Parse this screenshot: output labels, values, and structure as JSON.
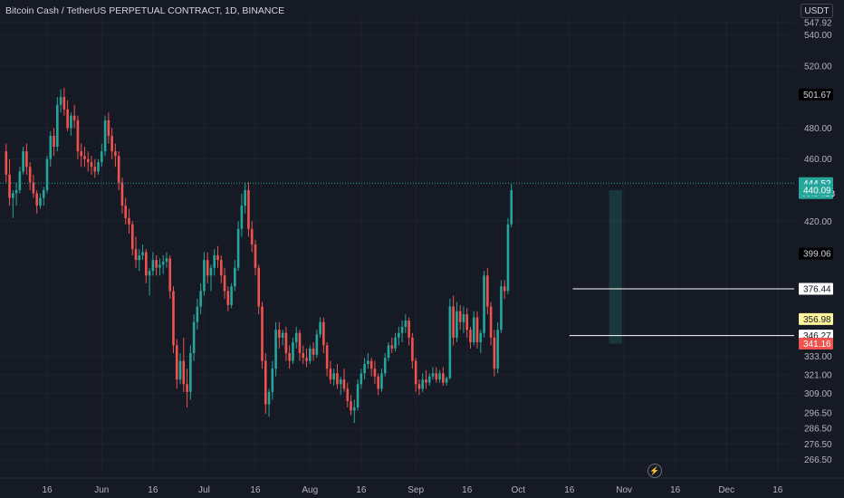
{
  "header": {
    "title": "Bitcoin Cash / TetherUS PERPETUAL CONTRACT, 1D, BINANCE",
    "currency": "USDT"
  },
  "colors": {
    "background": "#161a25",
    "grid": "#1f2330",
    "up": "#26a69a",
    "down": "#ef5350",
    "axis_text": "#b2b5be",
    "level_line": "#ffffff"
  },
  "icons": {
    "replay": "lightning-icon"
  },
  "chart_data": {
    "type": "candlestick",
    "title": "Bitcoin Cash / TetherUS PERPETUAL CONTRACT, 1D, BINANCE",
    "ylim": [
      258,
      552
    ],
    "y_ticks": [
      "266.50",
      "276.50",
      "286.50",
      "296.50",
      "309.00",
      "321.00",
      "333.00",
      "420.00",
      "460.00",
      "480.00",
      "520.00",
      "540.00",
      "547.92"
    ],
    "x_ticks": [
      {
        "label": "16",
        "day": 0
      },
      {
        "label": "Jun",
        "day": 16
      },
      {
        "label": "16",
        "day": 31
      },
      {
        "label": "Jul",
        "day": 46
      },
      {
        "label": "16",
        "day": 61
      },
      {
        "label": "Aug",
        "day": 77
      },
      {
        "label": "16",
        "day": 92
      },
      {
        "label": "Sep",
        "day": 108
      },
      {
        "label": "16",
        "day": 123
      },
      {
        "label": "Oct",
        "day": 138
      },
      {
        "label": "16",
        "day": 153
      },
      {
        "label": "Nov",
        "day": 169
      },
      {
        "label": "16",
        "day": 184
      },
      {
        "label": "Dec",
        "day": 199
      },
      {
        "label": "16",
        "day": 214
      }
    ],
    "price_labels": [
      {
        "value": 501.67,
        "text": "501.67",
        "style": "dark"
      },
      {
        "value": 444.52,
        "text": "444.52",
        "style": "green",
        "sub": "09:54:28"
      },
      {
        "value": 440.09,
        "text": "440.09",
        "style": "green"
      },
      {
        "value": 399.06,
        "text": "399.06",
        "style": "dark"
      },
      {
        "value": 376.44,
        "text": "376.44",
        "style": "white"
      },
      {
        "value": 356.98,
        "text": "356.98",
        "style": "yellow"
      },
      {
        "value": 346.27,
        "text": "346.27",
        "style": "white"
      },
      {
        "value": 341.16,
        "text": "341.16",
        "style": "red"
      }
    ],
    "levels": [
      {
        "value": 376.44,
        "from_day": 154
      },
      {
        "value": 346.27,
        "from_day": 153
      }
    ],
    "current_price": 444.52,
    "highlight": {
      "from_day": 165,
      "to_day": 168,
      "low": 341,
      "high": 440
    },
    "first_day": -12,
    "candles": [
      [
        465,
        470,
        445,
        450
      ],
      [
        450,
        460,
        430,
        435
      ],
      [
        435,
        440,
        422,
        438
      ],
      [
        438,
        445,
        430,
        440
      ],
      [
        440,
        455,
        438,
        452
      ],
      [
        452,
        468,
        450,
        465
      ],
      [
        465,
        470,
        450,
        455
      ],
      [
        455,
        458,
        440,
        445
      ],
      [
        445,
        450,
        435,
        438
      ],
      [
        438,
        440,
        425,
        430
      ],
      [
        430,
        438,
        428,
        435
      ],
      [
        435,
        442,
        430,
        440
      ],
      [
        440,
        462,
        438,
        460
      ],
      [
        460,
        478,
        455,
        475
      ],
      [
        475,
        480,
        462,
        468
      ],
      [
        468,
        500,
        465,
        495
      ],
      [
        495,
        505,
        490,
        500
      ],
      [
        500,
        506,
        488,
        492
      ],
      [
        492,
        498,
        478,
        480
      ],
      [
        480,
        490,
        475,
        488
      ],
      [
        488,
        495,
        480,
        485
      ],
      [
        485,
        488,
        460,
        465
      ],
      [
        465,
        470,
        455,
        462
      ],
      [
        462,
        468,
        455,
        460
      ],
      [
        460,
        465,
        452,
        458
      ],
      [
        458,
        462,
        450,
        455
      ],
      [
        455,
        460,
        448,
        452
      ],
      [
        452,
        460,
        450,
        458
      ],
      [
        458,
        470,
        455,
        465
      ],
      [
        465,
        488,
        462,
        485
      ],
      [
        485,
        490,
        470,
        475
      ],
      [
        475,
        480,
        460,
        465
      ],
      [
        465,
        470,
        455,
        462
      ],
      [
        462,
        465,
        440,
        445
      ],
      [
        445,
        448,
        425,
        430
      ],
      [
        430,
        435,
        418,
        422
      ],
      [
        422,
        428,
        412,
        418
      ],
      [
        418,
        420,
        398,
        402
      ],
      [
        402,
        410,
        390,
        395
      ],
      [
        395,
        402,
        388,
        398
      ],
      [
        398,
        405,
        395,
        400
      ],
      [
        400,
        402,
        380,
        385
      ],
      [
        385,
        390,
        372,
        388
      ],
      [
        388,
        400,
        385,
        395
      ],
      [
        395,
        398,
        385,
        390
      ],
      [
        390,
        396,
        385,
        392
      ],
      [
        392,
        398,
        386,
        394
      ],
      [
        394,
        400,
        390,
        396
      ],
      [
        396,
        398,
        370,
        375
      ],
      [
        375,
        378,
        335,
        340
      ],
      [
        340,
        344,
        312,
        318
      ],
      [
        318,
        335,
        315,
        330
      ],
      [
        330,
        345,
        310,
        315
      ],
      [
        315,
        325,
        300,
        310
      ],
      [
        310,
        340,
        305,
        335
      ],
      [
        335,
        360,
        330,
        355
      ],
      [
        355,
        370,
        350,
        365
      ],
      [
        365,
        380,
        360,
        375
      ],
      [
        375,
        400,
        372,
        395
      ],
      [
        395,
        400,
        380,
        385
      ],
      [
        385,
        392,
        375,
        390
      ],
      [
        390,
        402,
        385,
        398
      ],
      [
        398,
        404,
        390,
        395
      ],
      [
        395,
        398,
        380,
        385
      ],
      [
        385,
        390,
        370,
        375
      ],
      [
        375,
        378,
        362,
        366
      ],
      [
        366,
        380,
        364,
        378
      ],
      [
        378,
        395,
        375,
        390
      ],
      [
        390,
        420,
        388,
        415
      ],
      [
        415,
        438,
        410,
        430
      ],
      [
        430,
        445,
        425,
        440
      ],
      [
        440,
        445,
        410,
        415
      ],
      [
        415,
        420,
        400,
        405
      ],
      [
        405,
        408,
        385,
        390
      ],
      [
        390,
        392,
        360,
        365
      ],
      [
        365,
        368,
        325,
        330
      ],
      [
        330,
        335,
        296,
        302
      ],
      [
        302,
        312,
        294,
        310
      ],
      [
        310,
        330,
        305,
        325
      ],
      [
        325,
        355,
        320,
        350
      ],
      [
        350,
        355,
        338,
        345
      ],
      [
        345,
        350,
        340,
        348
      ],
      [
        348,
        352,
        330,
        335
      ],
      [
        335,
        340,
        325,
        330
      ],
      [
        330,
        345,
        328,
        342
      ],
      [
        342,
        352,
        338,
        348
      ],
      [
        348,
        350,
        330,
        335
      ],
      [
        335,
        340,
        328,
        332
      ],
      [
        332,
        338,
        326,
        330
      ],
      [
        330,
        340,
        328,
        338
      ],
      [
        338,
        342,
        330,
        334
      ],
      [
        334,
        350,
        332,
        347
      ],
      [
        347,
        358,
        345,
        355
      ],
      [
        355,
        358,
        335,
        340
      ],
      [
        340,
        342,
        320,
        325
      ],
      [
        325,
        330,
        315,
        318
      ],
      [
        318,
        325,
        314,
        322
      ],
      [
        322,
        328,
        312,
        315
      ],
      [
        315,
        320,
        308,
        318
      ],
      [
        318,
        325,
        310,
        312
      ],
      [
        312,
        316,
        300,
        304
      ],
      [
        304,
        308,
        295,
        298
      ],
      [
        298,
        305,
        290,
        300
      ],
      [
        300,
        318,
        298,
        315
      ],
      [
        315,
        325,
        312,
        322
      ],
      [
        322,
        332,
        318,
        328
      ],
      [
        328,
        335,
        325,
        330
      ],
      [
        330,
        332,
        320,
        325
      ],
      [
        325,
        330,
        315,
        320
      ],
      [
        320,
        322,
        308,
        312
      ],
      [
        312,
        325,
        310,
        322
      ],
      [
        322,
        335,
        320,
        332
      ],
      [
        332,
        342,
        330,
        340
      ],
      [
        340,
        345,
        335,
        338
      ],
      [
        338,
        348,
        336,
        345
      ],
      [
        345,
        352,
        340,
        348
      ],
      [
        348,
        356,
        342,
        352
      ],
      [
        352,
        360,
        348,
        356
      ],
      [
        356,
        358,
        340,
        345
      ],
      [
        345,
        348,
        325,
        330
      ],
      [
        330,
        332,
        310,
        315
      ],
      [
        315,
        318,
        308,
        312
      ],
      [
        312,
        322,
        310,
        318
      ],
      [
        318,
        324,
        312,
        316
      ],
      [
        316,
        322,
        314,
        320
      ],
      [
        320,
        326,
        318,
        322
      ],
      [
        322,
        326,
        316,
        318
      ],
      [
        318,
        324,
        316,
        322
      ],
      [
        322,
        326,
        314,
        316
      ],
      [
        316,
        320,
        314,
        319
      ],
      [
        319,
        370,
        318,
        365
      ],
      [
        365,
        372,
        340,
        345
      ],
      [
        345,
        368,
        342,
        362
      ],
      [
        362,
        366,
        350,
        355
      ],
      [
        355,
        365,
        348,
        360
      ],
      [
        360,
        364,
        345,
        350
      ],
      [
        350,
        352,
        338,
        342
      ],
      [
        342,
        362,
        340,
        358
      ],
      [
        358,
        362,
        338,
        342
      ],
      [
        342,
        350,
        335,
        348
      ],
      [
        348,
        388,
        345,
        385
      ],
      [
        385,
        390,
        360,
        365
      ],
      [
        365,
        368,
        340,
        345
      ],
      [
        345,
        350,
        320,
        325
      ],
      [
        325,
        355,
        322,
        350
      ],
      [
        350,
        382,
        348,
        378
      ],
      [
        378,
        382,
        370,
        375
      ],
      [
        375,
        422,
        373,
        418
      ],
      [
        418,
        444,
        416,
        440
      ]
    ]
  }
}
